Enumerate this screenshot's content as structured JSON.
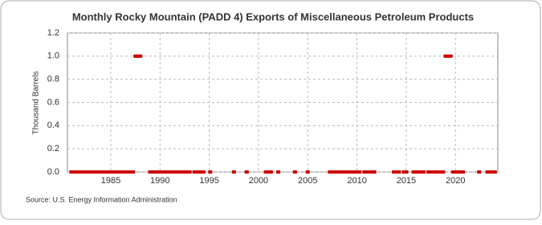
{
  "chart_data": {
    "type": "scatter",
    "title": "Monthly Rocky Mountain (PADD 4) Exports of Miscellaneous Petroleum Products",
    "y_label": "Thousand Barrels",
    "source": "Source: U.S. Energy Information Administration",
    "x": [
      1981,
      1981.25,
      1981.5,
      1981.75,
      1982,
      1982.25,
      1982.5,
      1982.75,
      1983,
      1983.25,
      1983.5,
      1983.75,
      1984,
      1984.25,
      1984.5,
      1984.75,
      1985,
      1985.25,
      1985.5,
      1985.75,
      1986,
      1986.25,
      1986.5,
      1986.75,
      1987,
      1987.25,
      1987.5,
      1987.75,
      1988,
      1989,
      1989.25,
      1989.5,
      1989.75,
      1990,
      1990.25,
      1990.5,
      1990.75,
      1991,
      1991.25,
      1991.5,
      1991.75,
      1992,
      1992.25,
      1992.5,
      1992.75,
      1993,
      1993.5,
      1993.75,
      1994,
      1994.4,
      1995.1,
      1997.5,
      1998.8,
      2000.75,
      2001,
      2001.25,
      2002,
      2003.7,
      2005,
      2007.25,
      2007.5,
      2007.75,
      2008,
      2008.25,
      2008.5,
      2008.75,
      2009,
      2009.25,
      2009.5,
      2009.75,
      2010,
      2010.25,
      2010.75,
      2011,
      2011.25,
      2011.5,
      2011.75,
      2013.75,
      2014,
      2014.25,
      2014.75,
      2015,
      2015.75,
      2016,
      2016.25,
      2016.5,
      2016.75,
      2017.25,
      2017.5,
      2017.75,
      2018,
      2018.25,
      2018.5,
      2018.75,
      2019,
      2019.25,
      2019.5,
      2019.75,
      2020,
      2020.25,
      2020.5,
      2020.75,
      2022.4,
      2023.25,
      2023.5,
      2023.75,
      2024
    ],
    "series": [
      {
        "color": "#cc0000",
        "values": [
          0,
          0,
          0,
          0,
          0,
          0,
          0,
          0,
          0,
          0,
          0,
          0,
          0,
          0,
          0,
          0,
          0,
          0,
          0,
          0,
          0,
          0,
          0,
          0,
          0,
          0,
          1,
          1,
          1,
          0,
          0,
          0,
          0,
          0,
          0,
          0,
          0,
          0,
          0,
          0,
          0,
          0,
          0,
          0,
          0,
          0,
          0,
          0,
          0,
          0,
          0,
          0,
          0,
          0,
          0,
          0,
          0,
          0,
          0,
          0,
          0,
          0,
          0,
          0,
          0,
          0,
          0,
          0,
          0,
          0,
          0,
          0,
          0,
          0,
          0,
          0,
          0,
          0,
          0,
          0,
          0,
          0,
          0,
          0,
          0,
          0,
          0,
          0,
          0,
          0,
          0,
          0,
          0,
          0,
          1,
          1,
          1,
          0,
          0,
          0,
          0,
          0,
          0,
          0,
          0,
          0,
          0
        ]
      }
    ],
    "xlim": [
      1980.6,
      2024.3
    ],
    "xticks": [
      1985,
      1990,
      1995,
      2000,
      2005,
      2010,
      2015,
      2020
    ],
    "ylim": [
      0,
      1.2
    ],
    "yticks": [
      {
        "value": 0,
        "label": "0.0"
      },
      0.2,
      0.4,
      0.6,
      0.8,
      {
        "value": 1,
        "label": "1.0"
      },
      1.2
    ],
    "grid": true
  }
}
